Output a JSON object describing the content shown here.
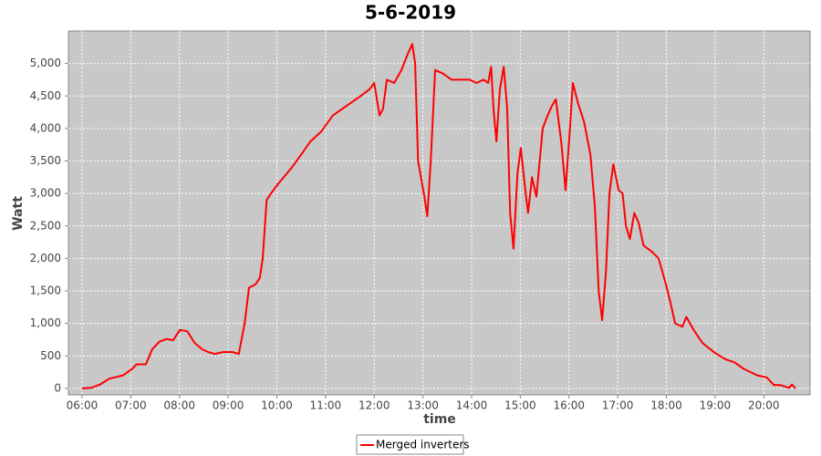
{
  "chart_data": {
    "type": "line",
    "title": "5-6-2019",
    "x_label": "time",
    "y_label": "Watt",
    "xlim": [
      5.72,
      20.95
    ],
    "ylim": [
      -100,
      5500
    ],
    "xticks": [
      {
        "value": 6,
        "label": "06:00"
      },
      {
        "value": 7,
        "label": "07:00"
      },
      {
        "value": 8,
        "label": "08:00"
      },
      {
        "value": 9,
        "label": "09:00"
      },
      {
        "value": 10,
        "label": "10:00"
      },
      {
        "value": 11,
        "label": "11:00"
      },
      {
        "value": 12,
        "label": "12:00"
      },
      {
        "value": 13,
        "label": "13:00"
      },
      {
        "value": 14,
        "label": "14:00"
      },
      {
        "value": 15,
        "label": "15:00"
      },
      {
        "value": 16,
        "label": "16:00"
      },
      {
        "value": 17,
        "label": "17:00"
      },
      {
        "value": 18,
        "label": "18:00"
      },
      {
        "value": 19,
        "label": "19:00"
      },
      {
        "value": 20,
        "label": "20:00"
      }
    ],
    "yticks": [
      0,
      500,
      {
        "value": 1000,
        "label": "1,000"
      },
      {
        "value": 1500,
        "label": "1,500"
      },
      {
        "value": 2000,
        "label": "2,000"
      },
      {
        "value": 2500,
        "label": "2,500"
      },
      {
        "value": 3000,
        "label": "3,000"
      },
      {
        "value": 3500,
        "label": "3,500"
      },
      {
        "value": 4000,
        "label": "4,000"
      },
      {
        "value": 4500,
        "label": "4,500"
      },
      {
        "value": 5000,
        "label": "5,000"
      }
    ],
    "grid": true,
    "legend": "bottom",
    "x": [
      6.0,
      6.19,
      6.37,
      6.56,
      6.84,
      7.03,
      7.12,
      7.31,
      7.44,
      7.59,
      7.74,
      7.87,
      8.01,
      8.16,
      8.31,
      8.47,
      8.59,
      8.72,
      8.9,
      9.09,
      9.22,
      9.34,
      9.43,
      9.56,
      9.65,
      9.71,
      9.79,
      9.88,
      10.03,
      10.31,
      10.5,
      10.69,
      10.91,
      11.15,
      11.34,
      11.53,
      11.72,
      11.9,
      12.0,
      12.11,
      12.18,
      12.26,
      12.41,
      12.56,
      12.69,
      12.78,
      12.84,
      12.9,
      12.95,
      13.03,
      13.09,
      13.16,
      13.25,
      13.4,
      13.59,
      13.78,
      13.96,
      14.1,
      14.25,
      14.34,
      14.4,
      14.45,
      14.51,
      14.58,
      14.66,
      14.73,
      14.79,
      14.86,
      14.94,
      15.01,
      15.11,
      15.16,
      15.24,
      15.33,
      15.46,
      15.56,
      15.65,
      15.73,
      15.84,
      15.93,
      16.01,
      16.08,
      16.18,
      16.31,
      16.44,
      16.53,
      16.61,
      16.68,
      16.76,
      16.83,
      16.91,
      17.02,
      17.1,
      17.17,
      17.25,
      17.34,
      17.43,
      17.53,
      17.62,
      17.71,
      17.84,
      17.99,
      18.09,
      18.18,
      18.33,
      18.41,
      18.56,
      18.74,
      18.99,
      19.21,
      19.4,
      19.59,
      19.87,
      20.06,
      20.21,
      20.34,
      20.52,
      20.58,
      20.65
    ],
    "series": [
      {
        "name": "Merged inverters",
        "color": "#ff0000",
        "values": [
          0,
          10,
          60,
          150,
          200,
          300,
          370,
          370,
          600,
          720,
          760,
          740,
          900,
          880,
          700,
          600,
          560,
          530,
          560,
          560,
          530,
          1000,
          1550,
          1600,
          1700,
          2000,
          2900,
          3000,
          3150,
          3400,
          3600,
          3800,
          3950,
          4200,
          4300,
          4400,
          4500,
          4600,
          4700,
          4200,
          4300,
          4750,
          4700,
          4900,
          5150,
          5300,
          5000,
          3500,
          3300,
          2950,
          2650,
          3500,
          4900,
          4850,
          4750,
          4750,
          4750,
          4700,
          4750,
          4700,
          4950,
          4300,
          3800,
          4600,
          4950,
          4300,
          2700,
          2150,
          3300,
          3700,
          3000,
          2700,
          3250,
          2950,
          4000,
          4200,
          4350,
          4450,
          3800,
          3050,
          3900,
          4700,
          4400,
          4100,
          3600,
          2800,
          1500,
          1050,
          1800,
          3000,
          3450,
          3050,
          3000,
          2500,
          2300,
          2700,
          2550,
          2200,
          2150,
          2100,
          2000,
          1600,
          1300,
          1000,
          950,
          1100,
          900,
          700,
          550,
          450,
          400,
          300,
          200,
          170,
          50,
          50,
          10,
          60,
          0
        ]
      }
    ]
  }
}
